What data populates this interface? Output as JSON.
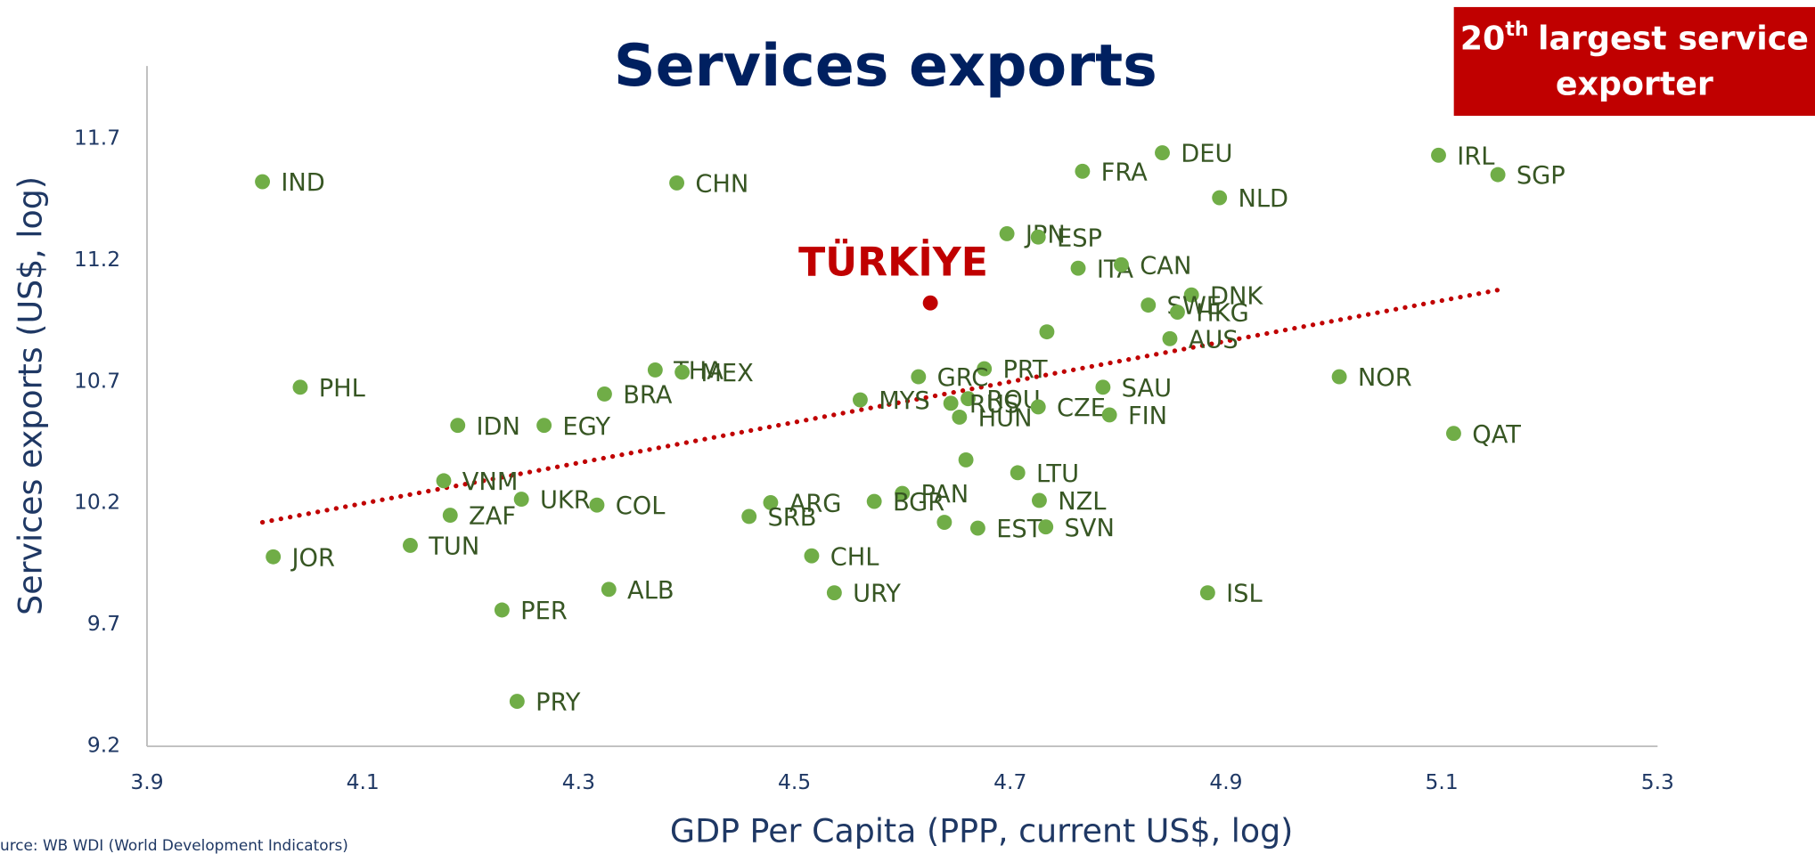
{
  "chart_data": {
    "type": "scatter",
    "title": "Services exports",
    "x_label": "GDP Per Capita (PPP, current US$, log)",
    "y_label": "Services exports (US$, log)",
    "source": "urce: WB WDI (World Development Indicators)",
    "badge": {
      "number": "20",
      "superscript": "th",
      "lines": [
        "largest service",
        "exporter"
      ],
      "color": "#c00000"
    },
    "xlim": [
      3.9,
      5.3
    ],
    "xticks": [
      3.9,
      4.1,
      4.3,
      4.5,
      4.7,
      4.9,
      5.1,
      5.3
    ],
    "ylim": [
      9.2,
      12.0
    ],
    "yticks": [
      9.2,
      9.7,
      10.2,
      10.7,
      11.2,
      11.7
    ],
    "grid": false,
    "color": "#70ad47",
    "points": [
      {
        "label": "IND",
        "x": 4.007,
        "y": 11.524
      },
      {
        "label": "CHN",
        "x": 4.391,
        "y": 11.519
      },
      {
        "label": "DEU",
        "x": 4.841,
        "y": 11.643
      },
      {
        "label": "FRA",
        "x": 4.767,
        "y": 11.567
      },
      {
        "label": "IRL",
        "x": 5.097,
        "y": 11.633
      },
      {
        "label": "SGP",
        "x": 5.152,
        "y": 11.553
      },
      {
        "label": "NLD",
        "x": 4.894,
        "y": 11.458
      },
      {
        "label": "JPN",
        "x": 4.697,
        "y": 11.31
      },
      {
        "label": "ESP",
        "x": 4.726,
        "y": 11.296
      },
      {
        "label": "ITA",
        "x": 4.763,
        "y": 11.168
      },
      {
        "label": "CAN",
        "x": 4.803,
        "y": 11.182
      },
      {
        "label": "DNK",
        "x": 4.868,
        "y": 11.058
      },
      {
        "label": "SWE",
        "x": 4.828,
        "y": 11.016
      },
      {
        "label": "HKG",
        "x": 4.855,
        "y": 10.987
      },
      {
        "label": null,
        "x": 4.734,
        "y": 10.906
      },
      {
        "label": "AUS",
        "x": 4.848,
        "y": 10.878
      },
      {
        "label": "NOR",
        "x": 5.005,
        "y": 10.721
      },
      {
        "label": "SAU",
        "x": 4.786,
        "y": 10.678
      },
      {
        "label": "PHL",
        "x": 4.042,
        "y": 10.678
      },
      {
        "label": "THA",
        "x": 4.371,
        "y": 10.749
      },
      {
        "label": "MEX",
        "x": 4.396,
        "y": 10.74
      },
      {
        "label": "PRT",
        "x": 4.676,
        "y": 10.754
      },
      {
        "label": "GRC",
        "x": 4.615,
        "y": 10.721
      },
      {
        "label": "BRA",
        "x": 4.324,
        "y": 10.65
      },
      {
        "label": "MYS",
        "x": 4.561,
        "y": 10.626
      },
      {
        "label": "ROU",
        "x": 4.661,
        "y": 10.631
      },
      {
        "label": "RUS",
        "x": 4.645,
        "y": 10.612
      },
      {
        "label": "CZE",
        "x": 4.726,
        "y": 10.597
      },
      {
        "label": "HUN",
        "x": 4.653,
        "y": 10.555
      },
      {
        "label": "FIN",
        "x": 4.792,
        "y": 10.564
      },
      {
        "label": "IDN",
        "x": 4.188,
        "y": 10.521
      },
      {
        "label": "EGY",
        "x": 4.268,
        "y": 10.521
      },
      {
        "label": "QAT",
        "x": 5.111,
        "y": 10.488
      },
      {
        "label": null,
        "x": 4.659,
        "y": 10.379
      },
      {
        "label": "LTU",
        "x": 4.707,
        "y": 10.326
      },
      {
        "label": "VNM",
        "x": 4.175,
        "y": 10.293
      },
      {
        "label": "PAN",
        "x": 4.6,
        "y": 10.241
      },
      {
        "label": "UKR",
        "x": 4.247,
        "y": 10.217
      },
      {
        "label": "NZL",
        "x": 4.727,
        "y": 10.212
      },
      {
        "label": "BGR",
        "x": 4.574,
        "y": 10.208
      },
      {
        "label": "ARG",
        "x": 4.478,
        "y": 10.203
      },
      {
        "label": "COL",
        "x": 4.317,
        "y": 10.193
      },
      {
        "label": "ZAF",
        "x": 4.181,
        "y": 10.151
      },
      {
        "label": "SRB",
        "x": 4.458,
        "y": 10.146
      },
      {
        "label": null,
        "x": 4.639,
        "y": 10.122
      },
      {
        "label": "EST",
        "x": 4.67,
        "y": 10.098
      },
      {
        "label": "SVN",
        "x": 4.733,
        "y": 10.103
      },
      {
        "label": "TUN",
        "x": 4.144,
        "y": 10.027
      },
      {
        "label": "JOR",
        "x": 4.017,
        "y": 9.98
      },
      {
        "label": "CHL",
        "x": 4.516,
        "y": 9.984
      },
      {
        "label": "ALB",
        "x": 4.328,
        "y": 9.846
      },
      {
        "label": "URY",
        "x": 4.537,
        "y": 9.832
      },
      {
        "label": "ISL",
        "x": 4.883,
        "y": 9.832
      },
      {
        "label": "PER",
        "x": 4.229,
        "y": 9.761
      },
      {
        "label": "PRY",
        "x": 4.243,
        "y": 9.385
      }
    ],
    "highlight": {
      "label": "TÜRKİYE",
      "x": 4.626,
      "y": 11.025,
      "color": "#c00000"
    },
    "trendline": {
      "x": [
        4.007,
        5.152
      ],
      "y": [
        10.122,
        11.078
      ],
      "color": "#c00000"
    }
  }
}
